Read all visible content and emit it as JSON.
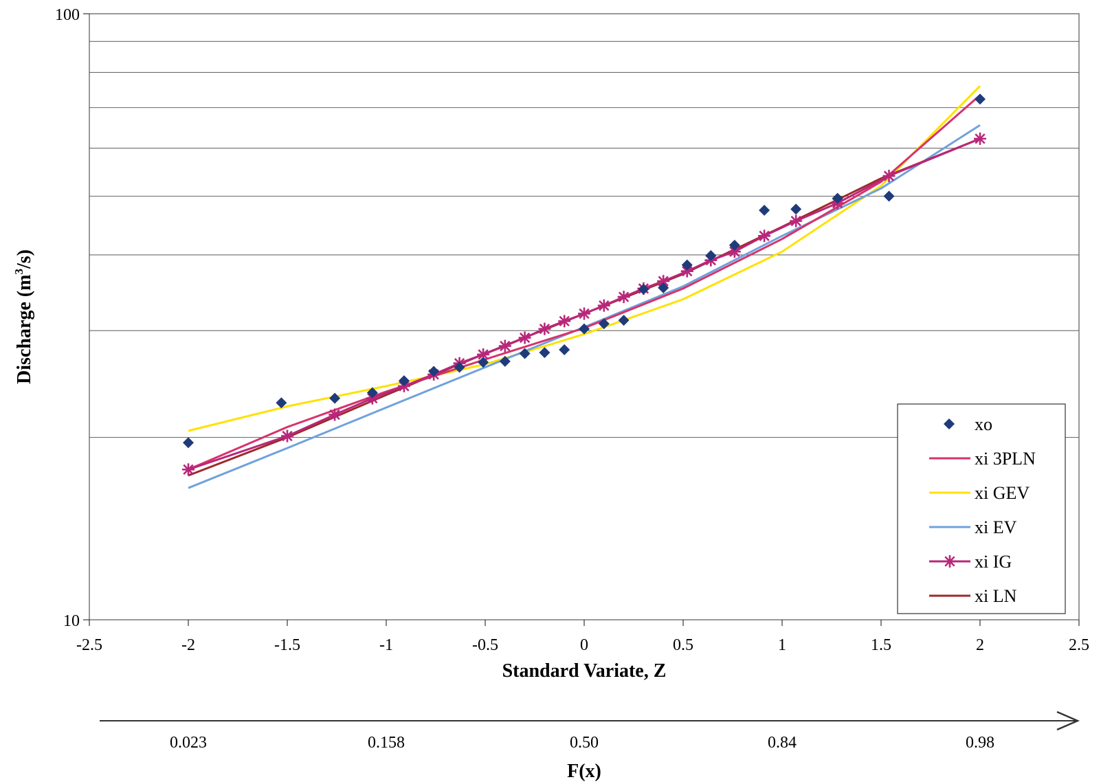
{
  "chart_data": {
    "type": "line",
    "title": "",
    "xlabel": "Standard Variate, Z",
    "ylabel_main": "Discharge (m",
    "ylabel_sup": "3",
    "ylabel_tail": "/s)",
    "y_scale": "log",
    "xlim": [
      -2.5,
      2.5
    ],
    "ylim": [
      10,
      100
    ],
    "x_ticks": [
      -2.5,
      -2,
      -1.5,
      -1,
      -0.5,
      0,
      0.5,
      1,
      1.5,
      2,
      2.5
    ],
    "x_tick_labels": [
      "-2.5",
      "-2",
      "-1.5",
      "-1",
      "-0.5",
      "0",
      "0.5",
      "1",
      "1.5",
      "2",
      "2.5"
    ],
    "y_tick_labels": [
      "100",
      "10"
    ],
    "y_gridlines": [
      20,
      30,
      40,
      50,
      60,
      70,
      80,
      90
    ],
    "legend_position": "bottom-right",
    "series": [
      {
        "name": "xo",
        "kind": "marker",
        "marker": "diamond",
        "color": "#1f3b7a",
        "x": [
          -2,
          -1.53,
          -1.26,
          -1.07,
          -0.91,
          -0.76,
          -0.63,
          -0.51,
          -0.4,
          -0.3,
          -0.2,
          -0.1,
          0,
          0.1,
          0.2,
          0.3,
          0.4,
          0.52,
          0.64,
          0.76,
          0.91,
          1.07,
          1.28,
          1.54,
          2
        ],
        "y": [
          19.6,
          22.8,
          23.2,
          23.7,
          24.8,
          25.7,
          26.1,
          26.6,
          26.7,
          27.5,
          27.6,
          27.9,
          30.2,
          30.8,
          31.2,
          35.1,
          35.3,
          38.5,
          39.9,
          41.5,
          47.4,
          47.6,
          49.6,
          50.0,
          72.3
        ]
      },
      {
        "name": "xi 3PLN",
        "kind": "line",
        "color": "#d6336c",
        "x": [
          -2,
          -1.5,
          -1,
          -0.5,
          0,
          0.5,
          1,
          1.5,
          2
        ],
        "y": [
          17.7,
          20.8,
          23.8,
          26.9,
          30.3,
          35.2,
          42.5,
          52.8,
          73.4
        ]
      },
      {
        "name": "xi GEV",
        "kind": "line",
        "color": "#ffe100",
        "x": [
          -2,
          -1.5,
          -1,
          -0.5,
          0,
          0.5,
          1,
          1.5,
          2
        ],
        "y": [
          20.5,
          22.5,
          24.3,
          26.4,
          29.6,
          33.8,
          40.5,
          52.0,
          76.0
        ]
      },
      {
        "name": "xi EV",
        "kind": "line",
        "color": "#6fa2dc",
        "x": [
          -2,
          -1.5,
          -1,
          -0.5,
          0,
          0.5,
          1,
          1.5,
          2
        ],
        "y": [
          16.5,
          19.2,
          22.4,
          26.1,
          30.4,
          35.5,
          43.0,
          51.5,
          65.5
        ]
      },
      {
        "name": "xi IG",
        "kind": "marker-line",
        "marker": "star",
        "color": "#b8277a",
        "x": [
          -2,
          -1.5,
          -1.26,
          -1.07,
          -0.91,
          -0.76,
          -0.63,
          -0.51,
          -0.4,
          -0.3,
          -0.2,
          -0.1,
          0,
          0.1,
          0.2,
          0.3,
          0.4,
          0.52,
          0.64,
          0.76,
          0.91,
          1.07,
          1.28,
          1.54,
          2
        ],
        "y": [
          17.7,
          20.1,
          21.8,
          23.2,
          24.3,
          25.4,
          26.5,
          27.4,
          28.3,
          29.2,
          30.2,
          31.1,
          32.0,
          33.0,
          34.1,
          35.2,
          36.2,
          37.6,
          39.2,
          40.5,
          43.0,
          45.5,
          48.7,
          54.0,
          62.2
        ]
      },
      {
        "name": "xi LN",
        "kind": "line",
        "color": "#9e2a2a",
        "x": [
          -2,
          -1.5,
          -1,
          -0.5,
          0,
          0.5,
          1,
          1.5,
          2
        ],
        "y": [
          17.3,
          20.0,
          23.5,
          27.5,
          32.0,
          37.2,
          44.5,
          53.5,
          62.2
        ]
      }
    ],
    "fx_axis": {
      "label": "F(x)",
      "z_positions": [
        -2,
        -1,
        0,
        1,
        2
      ],
      "labels": [
        "0.023",
        "0.158",
        "0.50",
        "0.84",
        "0.98"
      ]
    }
  }
}
